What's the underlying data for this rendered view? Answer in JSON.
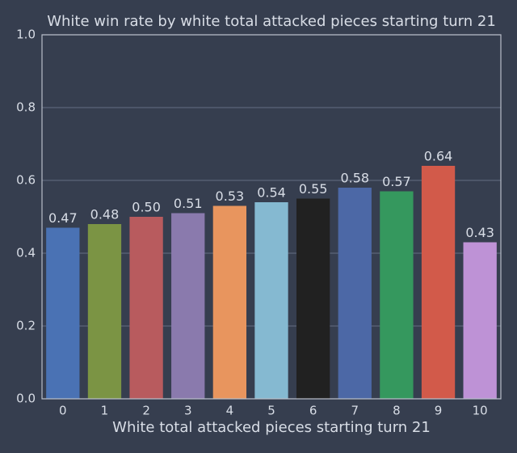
{
  "chart_data": {
    "type": "bar",
    "title": "White win rate by white total attacked pieces starting turn 21",
    "x_label": "White total attacked pieces starting turn 21",
    "categories": [
      "0",
      "1",
      "2",
      "3",
      "4",
      "5",
      "6",
      "7",
      "8",
      "9",
      "10"
    ],
    "values": [
      0.47,
      0.48,
      0.5,
      0.51,
      0.53,
      0.54,
      0.55,
      0.58,
      0.57,
      0.64,
      0.43
    ],
    "value_labels": [
      "0.47",
      "0.48",
      "0.50",
      "0.51",
      "0.53",
      "0.54",
      "0.55",
      "0.58",
      "0.57",
      "0.64",
      "0.43"
    ],
    "colors": [
      "#4a72b4",
      "#7b9444",
      "#b85b5e",
      "#8a7aad",
      "#e8955e",
      "#85b9d1",
      "#212121",
      "#4c68a6",
      "#35985e",
      "#d25a4a",
      "#be92d6"
    ],
    "ylim": [
      0,
      1
    ],
    "yticks": [
      {
        "value": 0,
        "label": "0.0"
      },
      0.2,
      0.4,
      0.6,
      0.8,
      {
        "value": 1,
        "label": "1.0"
      }
    ],
    "grid": true
  }
}
